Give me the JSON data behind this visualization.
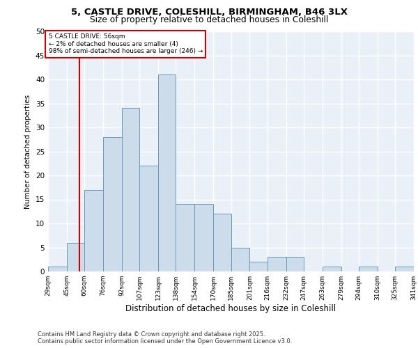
{
  "title_line1": "5, CASTLE DRIVE, COLESHILL, BIRMINGHAM, B46 3LX",
  "title_line2": "Size of property relative to detached houses in Coleshill",
  "xlabel": "Distribution of detached houses by size in Coleshill",
  "ylabel": "Number of detached properties",
  "footer_line1": "Contains HM Land Registry data © Crown copyright and database right 2025.",
  "footer_line2": "Contains public sector information licensed under the Open Government Licence v3.0.",
  "annotation_title": "5 CASTLE DRIVE: 56sqm",
  "annotation_line1": "← 2% of detached houses are smaller (4)",
  "annotation_line2": "98% of semi-detached houses are larger (246) →",
  "property_size": 56,
  "bar_left_edges": [
    29,
    45,
    60,
    76,
    92,
    107,
    123,
    138,
    154,
    170,
    185,
    201,
    216,
    232,
    247,
    263,
    279,
    294,
    310,
    325
  ],
  "bar_widths": [
    16,
    15,
    16,
    16,
    15,
    16,
    15,
    16,
    16,
    15,
    16,
    15,
    16,
    15,
    16,
    16,
    15,
    16,
    15,
    16
  ],
  "bar_heights": [
    1,
    6,
    17,
    28,
    34,
    22,
    41,
    14,
    14,
    12,
    5,
    2,
    3,
    3,
    0,
    1,
    0,
    1,
    0,
    1
  ],
  "tick_labels": [
    "29sqm",
    "45sqm",
    "60sqm",
    "76sqm",
    "92sqm",
    "107sqm",
    "123sqm",
    "138sqm",
    "154sqm",
    "170sqm",
    "185sqm",
    "201sqm",
    "216sqm",
    "232sqm",
    "247sqm",
    "263sqm",
    "279sqm",
    "294sqm",
    "310sqm",
    "325sqm",
    "341sqm"
  ],
  "bar_color": "#ccdcea",
  "bar_edge_color": "#6699bb",
  "background_color": "#eaf0f8",
  "grid_color": "#ffffff",
  "vline_color": "#cc0000",
  "annotation_box_color": "#cc0000",
  "ylim": [
    0,
    50
  ],
  "yticks": [
    0,
    5,
    10,
    15,
    20,
    25,
    30,
    35,
    40,
    45,
    50
  ]
}
